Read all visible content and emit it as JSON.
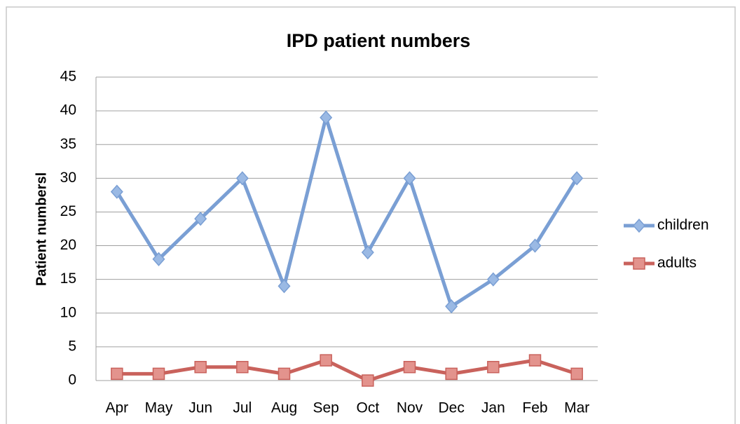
{
  "chart_data": {
    "type": "line",
    "title": "IPD  patient numbers",
    "y_label": "Patient numbersl",
    "categories": [
      "Apr",
      "May",
      "Jun",
      "Jul",
      "Aug",
      "Sep",
      "Oct",
      "Nov",
      "Dec",
      "Jan",
      "Feb",
      "Mar"
    ],
    "series": [
      {
        "name": "children",
        "color": "#7a9fd4",
        "values": [
          28,
          18,
          24,
          30,
          14,
          39,
          19,
          30,
          11,
          15,
          20,
          30
        ]
      },
      {
        "name": "adults",
        "color": "#c9625c",
        "values": [
          1,
          1,
          2,
          2,
          1,
          3,
          0,
          2,
          1,
          2,
          3,
          1
        ]
      }
    ],
    "ylim": [
      0,
      45
    ],
    "yticks": [
      0,
      5,
      10,
      15,
      20,
      25,
      30,
      35,
      40,
      45
    ],
    "grid": true,
    "legend": "right"
  }
}
